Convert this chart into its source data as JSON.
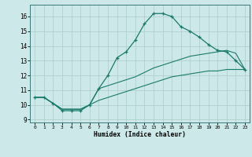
{
  "bg_color": "#cce8e8",
  "grid_color": "#aacccc",
  "line_color": "#1a7a6a",
  "xlabel": "Humidex (Indice chaleur)",
  "xlim": [
    -0.5,
    23.5
  ],
  "ylim": [
    8.8,
    16.8
  ],
  "xticks": [
    0,
    1,
    2,
    3,
    4,
    5,
    6,
    7,
    8,
    9,
    10,
    11,
    12,
    13,
    14,
    15,
    16,
    17,
    18,
    19,
    20,
    21,
    22,
    23
  ],
  "yticks": [
    9,
    10,
    11,
    12,
    13,
    14,
    15,
    16
  ],
  "curve_x": [
    0,
    1,
    2,
    3,
    4,
    5,
    6,
    7,
    8,
    9,
    10,
    11,
    12,
    13,
    14,
    15,
    16,
    17,
    18,
    19,
    20,
    21,
    22,
    23
  ],
  "curve_y": [
    10.5,
    10.5,
    10.1,
    9.6,
    9.6,
    9.6,
    10.0,
    11.1,
    12.0,
    13.2,
    13.6,
    14.4,
    15.5,
    16.2,
    16.2,
    16.0,
    15.3,
    15.0,
    14.6,
    14.1,
    13.7,
    13.6,
    13.0,
    12.4
  ],
  "diag1_x": [
    0,
    1,
    2,
    3,
    4,
    5,
    6,
    7,
    8,
    9,
    10,
    11,
    12,
    13,
    14,
    15,
    16,
    17,
    18,
    19,
    20,
    21,
    22,
    23
  ],
  "diag1_y": [
    10.5,
    10.5,
    10.1,
    9.7,
    9.7,
    9.7,
    10.0,
    11.1,
    11.3,
    11.5,
    11.7,
    11.9,
    12.2,
    12.5,
    12.7,
    12.9,
    13.1,
    13.3,
    13.4,
    13.5,
    13.6,
    13.7,
    13.5,
    12.4
  ],
  "diag2_x": [
    0,
    1,
    2,
    3,
    4,
    5,
    6,
    7,
    8,
    9,
    10,
    11,
    12,
    13,
    14,
    15,
    16,
    17,
    18,
    19,
    20,
    21,
    22,
    23
  ],
  "diag2_y": [
    10.5,
    10.5,
    10.1,
    9.7,
    9.7,
    9.7,
    10.0,
    10.3,
    10.5,
    10.7,
    10.9,
    11.1,
    11.3,
    11.5,
    11.7,
    11.9,
    12.0,
    12.1,
    12.2,
    12.3,
    12.3,
    12.4,
    12.4,
    12.4
  ]
}
